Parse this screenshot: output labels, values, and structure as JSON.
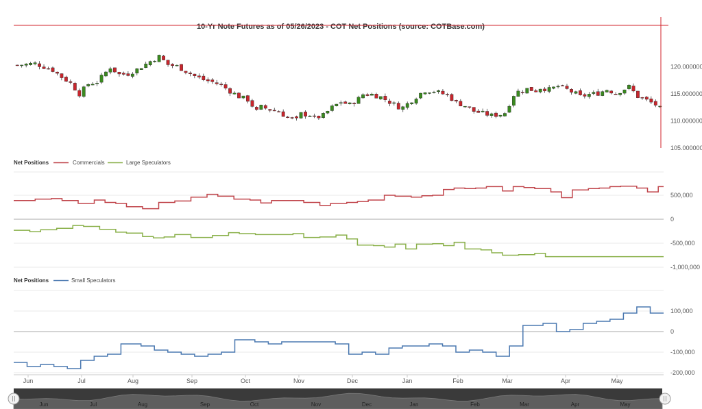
{
  "chart_title": "10-Yr Note Futures as of 05/26/2023 - COT Net Positions (source: COTBase.com)",
  "colors": {
    "up_candle": "#3a8a1f",
    "down_candle": "#c8262d",
    "commercials": "#c0444a",
    "large_speculators": "#8ab04a",
    "small_speculators": "#4a78b0",
    "crosshair": "#d0202a",
    "navigator_bg": "#3a3a3a"
  },
  "x_axis": {
    "months": [
      "Jun",
      "Jul",
      "Aug",
      "Sep",
      "Oct",
      "Nov",
      "Dec",
      "Jan",
      "Feb",
      "Mar",
      "Apr",
      "May"
    ]
  },
  "navigator": {
    "months": [
      "Jun",
      "Jul",
      "Aug",
      "Sep",
      "Oct",
      "Nov",
      "Dec",
      "Jan",
      "Feb",
      "Mar",
      "Apr",
      "May"
    ]
  },
  "chart_data": [
    {
      "type": "candlestick",
      "title": "10-Yr Note Futures as of 05/26/2023 - COT Net Positions (source: COTBase.com)",
      "y_ticks": [
        "120.000000",
        "115.000000",
        "110.000000",
        "105.000000"
      ],
      "ylim": [
        105,
        125
      ],
      "price_path": [
        [
          0,
          120.3
        ],
        [
          4,
          120.6
        ],
        [
          8,
          119.4
        ],
        [
          10,
          118.1
        ],
        [
          12,
          117.0
        ],
        [
          14,
          115.0
        ],
        [
          16,
          116.8
        ],
        [
          18,
          117.2
        ],
        [
          21,
          119.9
        ],
        [
          23,
          118.6
        ],
        [
          25,
          118.7
        ],
        [
          27,
          119.5
        ],
        [
          30,
          121.0
        ],
        [
          32,
          121.9
        ],
        [
          34,
          120.4
        ],
        [
          36,
          120.1
        ],
        [
          38,
          119.2
        ],
        [
          40,
          118.3
        ],
        [
          42,
          117.6
        ],
        [
          44,
          117.2
        ],
        [
          46,
          116.6
        ],
        [
          48,
          115.5
        ],
        [
          50,
          114.5
        ],
        [
          52,
          113.9
        ],
        [
          54,
          111.8
        ],
        [
          55,
          112.6
        ],
        [
          57,
          112.1
        ],
        [
          59,
          111.7
        ],
        [
          61,
          110.6
        ],
        [
          63,
          110.2
        ],
        [
          64,
          111.3
        ],
        [
          66,
          111.1
        ],
        [
          67,
          110.5
        ],
        [
          69,
          111.0
        ],
        [
          71,
          112.5
        ],
        [
          73,
          113.5
        ],
        [
          75,
          113.0
        ],
        [
          77,
          114.1
        ],
        [
          78,
          114.9
        ],
        [
          80,
          114.9
        ],
        [
          82,
          114.4
        ],
        [
          84,
          113.5
        ],
        [
          86,
          112.6
        ],
        [
          87,
          112.5
        ],
        [
          89,
          113.8
        ],
        [
          91,
          115.1
        ],
        [
          92,
          115.6
        ],
        [
          94,
          115.5
        ],
        [
          96,
          115.0
        ],
        [
          97,
          114.8
        ],
        [
          99,
          113.4
        ],
        [
          101,
          112.8
        ],
        [
          103,
          111.8
        ],
        [
          105,
          111.4
        ],
        [
          107,
          111.0
        ],
        [
          109,
          111.2
        ],
        [
          110,
          111.5
        ],
        [
          112,
          114.8
        ],
        [
          113,
          115.4
        ],
        [
          115,
          115.9
        ],
        [
          117,
          115.6
        ],
        [
          118,
          116.1
        ],
        [
          120,
          115.8
        ],
        [
          122,
          116.4
        ],
        [
          124,
          115.8
        ],
        [
          126,
          115.0
        ],
        [
          127,
          114.5
        ],
        [
          129,
          114.9
        ],
        [
          131,
          115.1
        ],
        [
          133,
          115.8
        ],
        [
          135,
          115.1
        ],
        [
          136,
          115.5
        ],
        [
          138,
          116.3
        ],
        [
          140,
          114.5
        ],
        [
          142,
          113.8
        ],
        [
          144,
          113.0
        ],
        [
          145,
          112.3
        ]
      ]
    },
    {
      "type": "line",
      "legend_title": "Net Positions",
      "y_ticks": [
        "500,000",
        "0",
        "-500,000",
        "-1,000,000"
      ],
      "ylim": [
        -1000000,
        1000000
      ],
      "series": [
        {
          "name": "Commercials",
          "steps": [
            [
              0,
              390000
            ],
            [
              4,
              420000
            ],
            [
              7,
              430000
            ],
            [
              9,
              390000
            ],
            [
              12,
              330000
            ],
            [
              15,
              400000
            ],
            [
              17,
              350000
            ],
            [
              19,
              330000
            ],
            [
              21,
              260000
            ],
            [
              24,
              220000
            ],
            [
              27,
              350000
            ],
            [
              30,
              380000
            ],
            [
              33,
              460000
            ],
            [
              36,
              520000
            ],
            [
              38,
              480000
            ],
            [
              41,
              420000
            ],
            [
              44,
              400000
            ],
            [
              46,
              340000
            ],
            [
              48,
              390000
            ],
            [
              51,
              390000
            ],
            [
              54,
              350000
            ],
            [
              57,
              290000
            ],
            [
              59,
              330000
            ],
            [
              62,
              350000
            ],
            [
              64,
              370000
            ],
            [
              66,
              400000
            ],
            [
              69,
              500000
            ],
            [
              71,
              480000
            ],
            [
              74,
              460000
            ],
            [
              76,
              490000
            ],
            [
              78,
              500000
            ],
            [
              80,
              620000
            ],
            [
              82,
              650000
            ],
            [
              84,
              640000
            ],
            [
              86,
              650000
            ],
            [
              88,
              680000
            ],
            [
              91,
              590000
            ],
            [
              93,
              680000
            ],
            [
              95,
              660000
            ],
            [
              97,
              640000
            ],
            [
              100,
              570000
            ],
            [
              102,
              450000
            ],
            [
              104,
              610000
            ],
            [
              107,
              640000
            ],
            [
              109,
              650000
            ],
            [
              111,
              680000
            ],
            [
              113,
              690000
            ],
            [
              116,
              650000
            ],
            [
              118,
              570000
            ],
            [
              120,
              680000
            ]
          ]
        },
        {
          "name": "Large Speculators",
          "steps": [
            [
              0,
              -230000
            ],
            [
              3,
              -260000
            ],
            [
              5,
              -220000
            ],
            [
              8,
              -190000
            ],
            [
              11,
              -130000
            ],
            [
              13,
              -150000
            ],
            [
              16,
              -210000
            ],
            [
              19,
              -270000
            ],
            [
              21,
              -290000
            ],
            [
              24,
              -360000
            ],
            [
              26,
              -390000
            ],
            [
              28,
              -370000
            ],
            [
              30,
              -320000
            ],
            [
              33,
              -380000
            ],
            [
              35,
              -380000
            ],
            [
              37,
              -340000
            ],
            [
              40,
              -280000
            ],
            [
              42,
              -300000
            ],
            [
              45,
              -320000
            ],
            [
              47,
              -320000
            ],
            [
              50,
              -320000
            ],
            [
              52,
              -300000
            ],
            [
              54,
              -380000
            ],
            [
              57,
              -370000
            ],
            [
              60,
              -330000
            ],
            [
              62,
              -410000
            ],
            [
              64,
              -540000
            ],
            [
              67,
              -550000
            ],
            [
              69,
              -580000
            ],
            [
              71,
              -520000
            ],
            [
              73,
              -620000
            ],
            [
              75,
              -520000
            ],
            [
              78,
              -510000
            ],
            [
              80,
              -550000
            ],
            [
              82,
              -480000
            ],
            [
              84,
              -620000
            ],
            [
              87,
              -640000
            ],
            [
              89,
              -700000
            ],
            [
              91,
              -750000
            ],
            [
              94,
              -740000
            ],
            [
              97,
              -710000
            ],
            [
              99,
              -780000
            ],
            [
              100,
              -780000
            ]
          ]
        }
      ]
    },
    {
      "type": "line",
      "legend_title": "Net Positions",
      "y_ticks": [
        "100,000",
        "0",
        "-100,000",
        "-200,000"
      ],
      "ylim": [
        -220000,
        160000
      ],
      "series": [
        {
          "name": "Small Speculators",
          "steps": [
            [
              0,
              -150000
            ],
            [
              2,
              -170000
            ],
            [
              4,
              -160000
            ],
            [
              6,
              -170000
            ],
            [
              8,
              -180000
            ],
            [
              10,
              -140000
            ],
            [
              12,
              -120000
            ],
            [
              14,
              -110000
            ],
            [
              16,
              -60000
            ],
            [
              19,
              -70000
            ],
            [
              21,
              -90000
            ],
            [
              23,
              -100000
            ],
            [
              25,
              -110000
            ],
            [
              27,
              -120000
            ],
            [
              29,
              -110000
            ],
            [
              31,
              -100000
            ],
            [
              33,
              -40000
            ],
            [
              36,
              -50000
            ],
            [
              38,
              -60000
            ],
            [
              40,
              -50000
            ],
            [
              42,
              -50000
            ],
            [
              44,
              -50000
            ],
            [
              46,
              -50000
            ],
            [
              48,
              -60000
            ],
            [
              50,
              -110000
            ],
            [
              52,
              -100000
            ],
            [
              54,
              -110000
            ],
            [
              56,
              -80000
            ],
            [
              58,
              -70000
            ],
            [
              60,
              -70000
            ],
            [
              62,
              -60000
            ],
            [
              64,
              -70000
            ],
            [
              66,
              -100000
            ],
            [
              68,
              -90000
            ],
            [
              70,
              -100000
            ],
            [
              72,
              -120000
            ],
            [
              74,
              -70000
            ],
            [
              76,
              30000
            ],
            [
              79,
              40000
            ],
            [
              81,
              0
            ],
            [
              83,
              10000
            ],
            [
              85,
              40000
            ],
            [
              87,
              50000
            ],
            [
              89,
              60000
            ],
            [
              91,
              90000
            ],
            [
              93,
              120000
            ],
            [
              95,
              90000
            ]
          ]
        }
      ]
    }
  ]
}
